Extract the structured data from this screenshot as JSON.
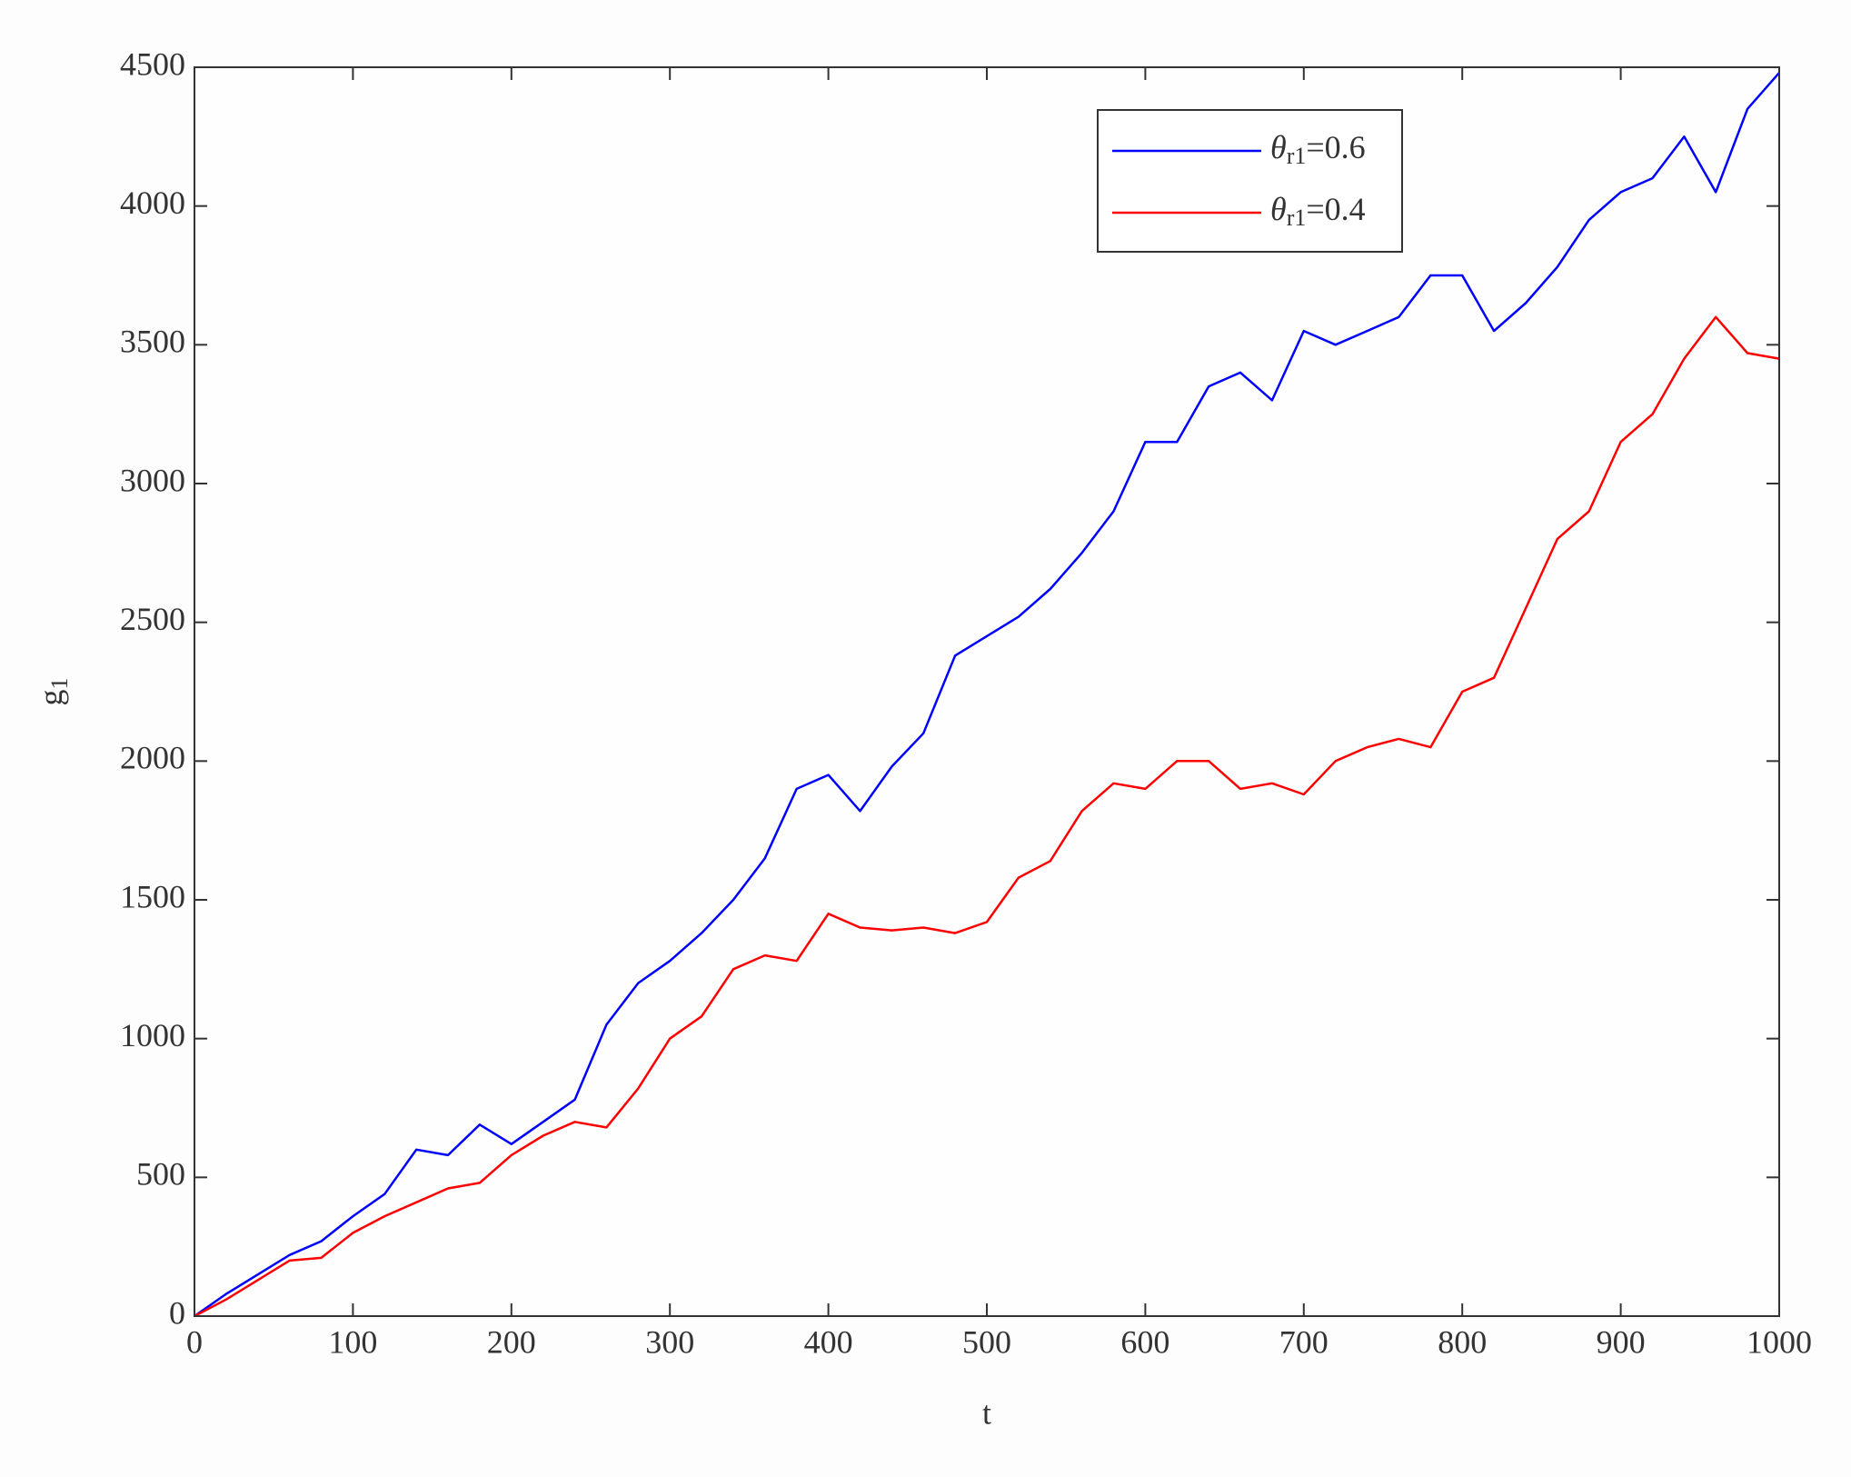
{
  "chart_data": {
    "type": "line",
    "x_label": "t",
    "y_label": "g1",
    "x": [
      0,
      20,
      40,
      60,
      80,
      100,
      120,
      140,
      160,
      180,
      200,
      220,
      240,
      260,
      280,
      300,
      320,
      340,
      360,
      380,
      400,
      420,
      440,
      460,
      480,
      500,
      520,
      540,
      560,
      580,
      600,
      620,
      640,
      660,
      680,
      700,
      720,
      740,
      760,
      780,
      800,
      820,
      840,
      860,
      880,
      900,
      920,
      940,
      960,
      980,
      1000
    ],
    "series": [
      {
        "name": "θr1=0.6",
        "color": "#0000ff",
        "values": [
          0,
          80,
          150,
          220,
          270,
          360,
          440,
          600,
          580,
          690,
          620,
          700,
          780,
          1050,
          1200,
          1280,
          1380,
          1500,
          1650,
          1900,
          1950,
          1820,
          1980,
          2100,
          2380,
          2450,
          2520,
          2620,
          2750,
          2900,
          3150,
          3150,
          3350,
          3400,
          3300,
          3550,
          3500,
          3550,
          3600,
          3750,
          3750,
          3550,
          3650,
          3780,
          3950,
          4050,
          4100,
          4250,
          4050,
          4350,
          4480
        ]
      },
      {
        "name": "θr1=0.4",
        "color": "#ff0000",
        "values": [
          0,
          60,
          130,
          200,
          210,
          300,
          360,
          410,
          460,
          480,
          580,
          650,
          700,
          680,
          820,
          1000,
          1080,
          1250,
          1300,
          1280,
          1450,
          1400,
          1390,
          1400,
          1380,
          1420,
          1580,
          1640,
          1820,
          1920,
          1900,
          2000,
          2000,
          1900,
          1920,
          1880,
          2000,
          2050,
          2080,
          2050,
          2250,
          2300,
          2550,
          2800,
          2900,
          3150,
          3250,
          3450,
          3600,
          3470,
          3450
        ]
      }
    ],
    "xlim": [
      0,
      1000
    ],
    "xticks": [
      0,
      100,
      200,
      300,
      400,
      500,
      600,
      700,
      800,
      900,
      1000
    ],
    "ylim": [
      0,
      4500
    ],
    "yticks": [
      0,
      500,
      1000,
      1500,
      2000,
      2500,
      3000,
      3500,
      4000,
      4500
    ],
    "legend": "upper-right"
  }
}
